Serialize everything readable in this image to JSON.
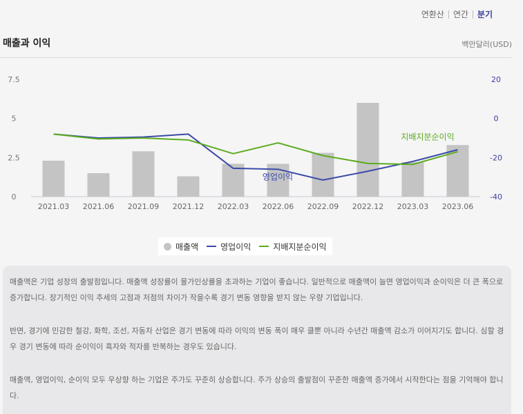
{
  "tabs": [
    {
      "label": "연환산",
      "active": false
    },
    {
      "label": "연간",
      "active": false
    },
    {
      "label": "분기",
      "active": true
    }
  ],
  "title": "매출과 이익",
  "unit": "백만달러(USD)",
  "colors": {
    "revenue": "#c4c4c4",
    "op_income": "#3a4aa8",
    "net_income": "#5aab1e",
    "accent": "#3b3fa0"
  },
  "chart_data": {
    "type": "bar",
    "categories": [
      "2021.03",
      "2021.06",
      "2021.09",
      "2021.12",
      "2022.03",
      "2022.06",
      "2022.09",
      "2022.12",
      "2023.03",
      "2023.06"
    ],
    "left_axis": {
      "ticks": [
        "7.5",
        "5",
        "2.5",
        "0"
      ],
      "range": [
        0,
        7.5
      ]
    },
    "right_axis": {
      "ticks": [
        "20",
        "0",
        "-20",
        "-40"
      ],
      "range": [
        -40,
        20
      ]
    },
    "series": [
      {
        "name": "매출액",
        "type": "bar",
        "axis": "left",
        "values": [
          2.3,
          1.5,
          2.9,
          1.3,
          2.1,
          2.1,
          2.8,
          6.0,
          2.2,
          3.3
        ]
      },
      {
        "name": "영업이익",
        "type": "line",
        "axis": "right",
        "values": [
          -8,
          -10,
          -9.5,
          -8,
          -25.5,
          -26,
          -31.5,
          -27,
          -22,
          -16
        ]
      },
      {
        "name": "지배지분순이익",
        "type": "line",
        "axis": "right",
        "values": [
          -8,
          -10.5,
          -10,
          -11,
          -18,
          -12.5,
          -19,
          -23,
          -23.5,
          -17
        ]
      }
    ],
    "annotations": [
      "영업이익",
      "지배지분순이익"
    ],
    "grid": false,
    "legend": "bottom-center"
  },
  "description": [
    "매출액은 기업 성장의 출발점입니다. 매출액 성장률이 물가인상률을 초과하는 기업이 좋습니다. 일반적으로 매출액이 늘면 영업이익과 순이익은 더 큰 폭으로 증가합니다. 장기적인 이익 추세의 고점과 저점의 차이가 작을수록 경기 변동 영향을 받지 않는 우량 기업입니다.",
    "반면, 경기에 민감한 철강, 화학, 조선, 자동차 산업은 경기 변동에 따라 이익의 변동 폭이 매우 클뿐 아니라 수년간 매출액 감소가 이어지기도 합니다. 심할 경우 경기 변동에 따라 순이익이 흑자와 적자를 반복하는 경우도 있습니다.",
    "매출액, 영업이익, 순이익 모두 우상향 하는 기업은 주가도 꾸준히 상승합니다. 주가 상승의 출발점이 꾸준한 매출액 증가에서 시작한다는 점을 기억해야 합니다."
  ]
}
